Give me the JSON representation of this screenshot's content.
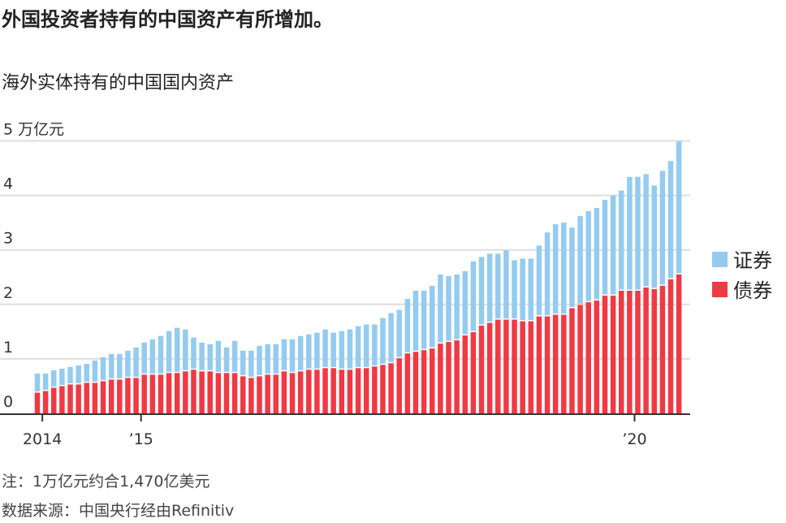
{
  "title": "外国投资者持有的中国资产有所增加。",
  "subtitle": "海外实体持有的中国国内资产",
  "notes": [
    "注：1万亿元约合1,470亿美元",
    "数据来源：中国央行经由Refinitiv"
  ],
  "chart_data": {
    "type": "bar",
    "stacked": true,
    "ylabel_unit": "万亿元",
    "ylim": [
      0,
      5
    ],
    "yticks": [
      0,
      1,
      2,
      3,
      4,
      5
    ],
    "ytick_labels": [
      "0",
      "1",
      "2",
      "3",
      "4",
      "5 万亿元"
    ],
    "grid": true,
    "legend_placement": "right",
    "categories": [
      "2013-12",
      "2014-01",
      "2014-02",
      "2014-03",
      "2014-04",
      "2014-05",
      "2014-06",
      "2014-07",
      "2014-08",
      "2014-09",
      "2014-10",
      "2014-11",
      "2014-12",
      "2015-01",
      "2015-02",
      "2015-03",
      "2015-04",
      "2015-05",
      "2015-06",
      "2015-07",
      "2015-08",
      "2015-09",
      "2015-10",
      "2015-11",
      "2015-12",
      "2016-01",
      "2016-02",
      "2016-03",
      "2016-04",
      "2016-05",
      "2016-06",
      "2016-07",
      "2016-08",
      "2016-09",
      "2016-10",
      "2016-11",
      "2016-12",
      "2017-01",
      "2017-02",
      "2017-03",
      "2017-04",
      "2017-05",
      "2017-06",
      "2017-07",
      "2017-08",
      "2017-09",
      "2017-10",
      "2017-11",
      "2017-12",
      "2018-01",
      "2018-02",
      "2018-03",
      "2018-04",
      "2018-05",
      "2018-06",
      "2018-07",
      "2018-08",
      "2018-09",
      "2018-10",
      "2018-11",
      "2018-12",
      "2019-01",
      "2019-02",
      "2019-03",
      "2019-04",
      "2019-05",
      "2019-06",
      "2019-07",
      "2019-08",
      "2019-09",
      "2019-10",
      "2019-11",
      "2019-12",
      "2020-01",
      "2020-02",
      "2020-03",
      "2020-04",
      "2020-05",
      "2020-06"
    ],
    "xticks": [
      {
        "category": "2014-01",
        "label": "2014"
      },
      {
        "category": "2015-01",
        "label": "’15"
      },
      {
        "category": "2020-01",
        "label": "’20"
      }
    ],
    "series": [
      {
        "name": "债券",
        "color": "#ef3a44",
        "values": [
          0.38,
          0.41,
          0.47,
          0.5,
          0.53,
          0.53,
          0.56,
          0.56,
          0.59,
          0.62,
          0.62,
          0.65,
          0.65,
          0.71,
          0.71,
          0.71,
          0.74,
          0.74,
          0.77,
          0.8,
          0.77,
          0.77,
          0.74,
          0.74,
          0.74,
          0.68,
          0.65,
          0.68,
          0.71,
          0.71,
          0.77,
          0.74,
          0.77,
          0.8,
          0.8,
          0.83,
          0.83,
          0.8,
          0.8,
          0.83,
          0.83,
          0.86,
          0.89,
          0.92,
          1.01,
          1.1,
          1.13,
          1.16,
          1.19,
          1.28,
          1.31,
          1.34,
          1.43,
          1.49,
          1.61,
          1.66,
          1.72,
          1.72,
          1.72,
          1.69,
          1.69,
          1.78,
          1.78,
          1.81,
          1.81,
          1.93,
          1.99,
          2.04,
          2.07,
          2.16,
          2.16,
          2.25,
          2.25,
          2.25,
          2.31,
          2.28,
          2.34,
          2.46,
          2.55
        ]
      },
      {
        "name": "证券",
        "color": "#94cbef",
        "values": [
          0.35,
          0.32,
          0.32,
          0.32,
          0.32,
          0.35,
          0.35,
          0.41,
          0.44,
          0.47,
          0.47,
          0.5,
          0.56,
          0.59,
          0.65,
          0.71,
          0.77,
          0.83,
          0.77,
          0.59,
          0.53,
          0.5,
          0.59,
          0.47,
          0.59,
          0.47,
          0.5,
          0.56,
          0.56,
          0.56,
          0.59,
          0.62,
          0.65,
          0.65,
          0.68,
          0.71,
          0.65,
          0.71,
          0.74,
          0.77,
          0.8,
          0.77,
          0.86,
          0.92,
          0.89,
          1.0,
          1.12,
          1.09,
          1.15,
          1.27,
          1.21,
          1.21,
          1.18,
          1.3,
          1.26,
          1.27,
          1.21,
          1.27,
          1.09,
          1.15,
          1.15,
          1.3,
          1.54,
          1.66,
          1.69,
          1.48,
          1.63,
          1.67,
          1.7,
          1.76,
          1.84,
          1.84,
          2.09,
          2.09,
          2.08,
          1.9,
          2.11,
          2.17,
          2.44
        ]
      }
    ],
    "legend_order": [
      "证券",
      "债券"
    ]
  }
}
